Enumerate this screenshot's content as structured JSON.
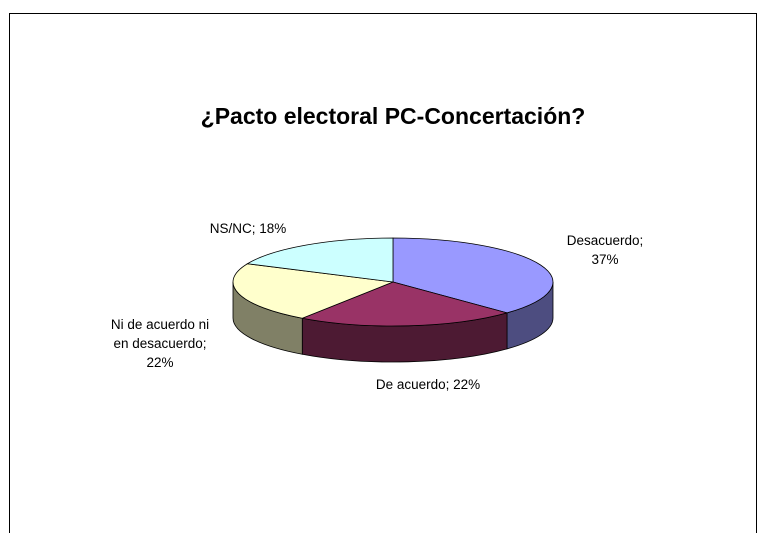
{
  "chart_data": {
    "type": "pie",
    "title": "¿Pacto electoral PC-Concertación?",
    "categories": [
      "Desacuerdo",
      "De acuerdo",
      "Ni de acuerdo ni en desacuerdo",
      "NS/NC"
    ],
    "values": [
      37,
      22,
      22,
      18
    ],
    "unit": "%",
    "labels": [
      [
        "Desacuerdo;",
        "37%"
      ],
      [
        "De acuerdo; 22%"
      ],
      [
        "Ni de acuerdo ni",
        "en desacuerdo;",
        "22%"
      ],
      [
        "NS/NC; 18%"
      ]
    ],
    "colors": [
      "#9999ff",
      "#993366",
      "#ffffcc",
      "#ccffff"
    ],
    "side_colors": [
      "#4d4d80",
      "#4d1a33",
      "#808066",
      "#668080"
    ],
    "style": "3d-pie"
  }
}
